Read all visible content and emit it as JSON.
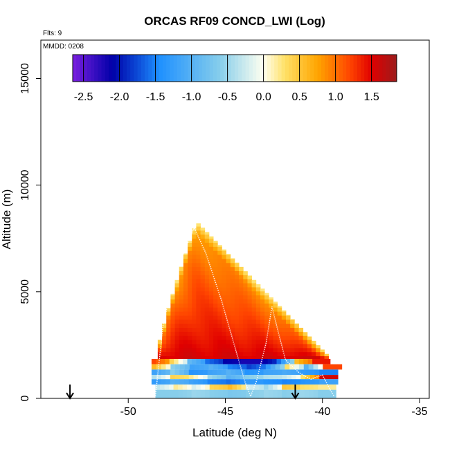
{
  "chart_data": {
    "type": "heatmap",
    "title": "ORCAS RF09 CONCD_LWI (Log)",
    "flights_label": "Flts: 9",
    "date_label": "MMDD: 0208",
    "xlabel": "Latitude (deg N)",
    "ylabel": "Altitude (m)",
    "xlim": [
      -54.5,
      -34.5
    ],
    "ylim": [
      0,
      16800
    ],
    "x_ticks": [
      -50,
      -45,
      -40,
      -35
    ],
    "y_ticks": [
      0,
      5000,
      10000,
      15000
    ],
    "x_tick_labels": [
      "-50",
      "-45",
      "-40",
      "-35"
    ],
    "y_tick_labels": [
      "0",
      "5000",
      "10000",
      "15000"
    ],
    "colorbar": {
      "range": [
        -2.65,
        1.85
      ],
      "ticks": [
        -2.5,
        -2.0,
        -1.5,
        -1.0,
        -0.5,
        0.0,
        0.5,
        1.0,
        1.5
      ],
      "tick_labels": [
        "-2.5",
        "-2.0",
        "-1.5",
        "-1.0",
        "-0.5",
        "0.0",
        "0.5",
        "1.0",
        "1.5"
      ],
      "colors": [
        "#7b1fe0",
        "#0000a8",
        "#0a3fd0",
        "#1e90ff",
        "#87ceeb",
        "#fffff0",
        "#ffe066",
        "#ffa500",
        "#ff4500",
        "#e00000",
        "#9b1c1c"
      ],
      "stops": [
        -2.65,
        -2.1,
        -1.8,
        -1.45,
        -0.6,
        0.0,
        0.3,
        0.75,
        1.2,
        1.5,
        1.85
      ]
    },
    "markers": [
      {
        "lat": -53.0,
        "label": "arrow-down"
      },
      {
        "lat": -41.4,
        "label": "arrow-down"
      }
    ],
    "upper_region": {
      "lat_min": -48.7,
      "lat_max": -39.7,
      "alt_base": 1800,
      "peak_lat": -46.6,
      "peak_alt": 8300,
      "edge_alt": 1900,
      "value_low": 1.55,
      "value_high": 0.15,
      "lat_step": 0.22,
      "alt_step": 190
    },
    "low_layers": [
      {
        "alt_min": 1600,
        "alt_max": 1850,
        "lat_min": -48.8,
        "lat_max": -39.6,
        "values": [
          1.2,
          0.4,
          -0.9,
          -1.6,
          -2.1,
          -2.2,
          -2.2,
          -1.6,
          0.6,
          1.4
        ]
      },
      {
        "alt_min": 1350,
        "alt_max": 1600,
        "lat_min": -48.8,
        "lat_max": -39.0,
        "values": [
          0.6,
          -0.6,
          -1.2,
          -1.0,
          -1.5,
          -1.8,
          -1.3,
          0.3,
          -1.0,
          1.2
        ]
      },
      {
        "alt_min": 1100,
        "alt_max": 1350,
        "lat_min": -48.8,
        "lat_max": -39.2,
        "values": [
          -1.2,
          -0.6,
          -1.4,
          -1.2,
          -1.0,
          -1.4,
          -1.2,
          -1.1,
          -1.3,
          -1.5
        ]
      },
      {
        "alt_min": 900,
        "alt_max": 1100,
        "lat_min": -48.8,
        "lat_max": -39.2,
        "values": [
          -0.4,
          0.4,
          0.2,
          -0.5,
          -1.0,
          -0.6,
          -0.4,
          -0.3,
          0.3,
          1.6
        ]
      },
      {
        "alt_min": 650,
        "alt_max": 900,
        "lat_min": -48.8,
        "lat_max": -39.2,
        "values": [
          -1.3,
          -1.0,
          -1.2,
          -1.5,
          -1.6,
          -1.3,
          -1.4,
          -1.5,
          -1.4,
          -1.2
        ]
      },
      {
        "alt_min": 400,
        "alt_max": 650,
        "lat_min": -48.6,
        "lat_max": -39.3,
        "values": [
          -0.3,
          0.2,
          -0.2,
          0.4,
          0.6,
          -0.2,
          -0.5,
          0.5,
          0.3,
          0.2
        ]
      },
      {
        "alt_min": 0,
        "alt_max": 400,
        "lat_min": -48.6,
        "lat_max": -39.3,
        "values": [
          -0.6,
          -0.6,
          -0.5,
          -0.6,
          -0.7,
          -0.6,
          -0.5,
          -0.6,
          -0.5,
          -0.6
        ]
      }
    ],
    "flight_track": [
      [
        -48.6,
        100
      ],
      [
        -48.2,
        3500
      ],
      [
        -47.6,
        5800
      ],
      [
        -46.8,
        7600
      ],
      [
        -46.6,
        8000
      ],
      [
        -46.0,
        6800
      ],
      [
        -45.2,
        4600
      ],
      [
        -44.6,
        2700
      ],
      [
        -44.0,
        800
      ],
      [
        -43.7,
        100
      ],
      [
        -43.4,
        800
      ],
      [
        -42.9,
        2600
      ],
      [
        -42.6,
        4300
      ],
      [
        -42.3,
        3200
      ],
      [
        -41.9,
        1800
      ],
      [
        -41.2,
        1200
      ],
      [
        -40.6,
        900
      ],
      [
        -40.0,
        1100
      ],
      [
        -39.6,
        400
      ],
      [
        -39.4,
        100
      ]
    ]
  }
}
